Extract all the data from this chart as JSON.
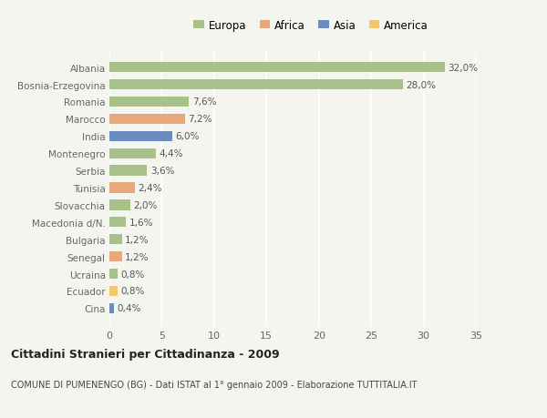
{
  "countries": [
    "Albania",
    "Bosnia-Erzegovina",
    "Romania",
    "Marocco",
    "India",
    "Montenegro",
    "Serbia",
    "Tunisia",
    "Slovacchia",
    "Macedonia d/N.",
    "Bulgaria",
    "Senegal",
    "Ucraina",
    "Ecuador",
    "Cina"
  ],
  "values": [
    32.0,
    28.0,
    7.6,
    7.2,
    6.0,
    4.4,
    3.6,
    2.4,
    2.0,
    1.6,
    1.2,
    1.2,
    0.8,
    0.8,
    0.4
  ],
  "labels": [
    "32,0%",
    "28,0%",
    "7,6%",
    "7,2%",
    "6,0%",
    "4,4%",
    "3,6%",
    "2,4%",
    "2,0%",
    "1,6%",
    "1,2%",
    "1,2%",
    "0,8%",
    "0,8%",
    "0,4%"
  ],
  "colors": [
    "#a8c08a",
    "#a8c08a",
    "#a8c08a",
    "#e8a87c",
    "#6b8cbf",
    "#a8c08a",
    "#a8c08a",
    "#e8a87c",
    "#a8c08a",
    "#a8c08a",
    "#a8c08a",
    "#e8a87c",
    "#a8c08a",
    "#f0c96e",
    "#6b8cbf"
  ],
  "legend_labels": [
    "Europa",
    "Africa",
    "Asia",
    "America"
  ],
  "legend_colors": [
    "#a8c08a",
    "#e8a87c",
    "#6b8cbf",
    "#f0c96e"
  ],
  "title": "Cittadini Stranieri per Cittadinanza - 2009",
  "subtitle": "COMUNE DI PUMENENGO (BG) - Dati ISTAT al 1° gennaio 2009 - Elaborazione TUTTITALIA.IT",
  "xlim": [
    0,
    35
  ],
  "xticks": [
    0,
    5,
    10,
    15,
    20,
    25,
    30,
    35
  ],
  "background_color": "#f5f5f0",
  "grid_color": "#ffffff"
}
